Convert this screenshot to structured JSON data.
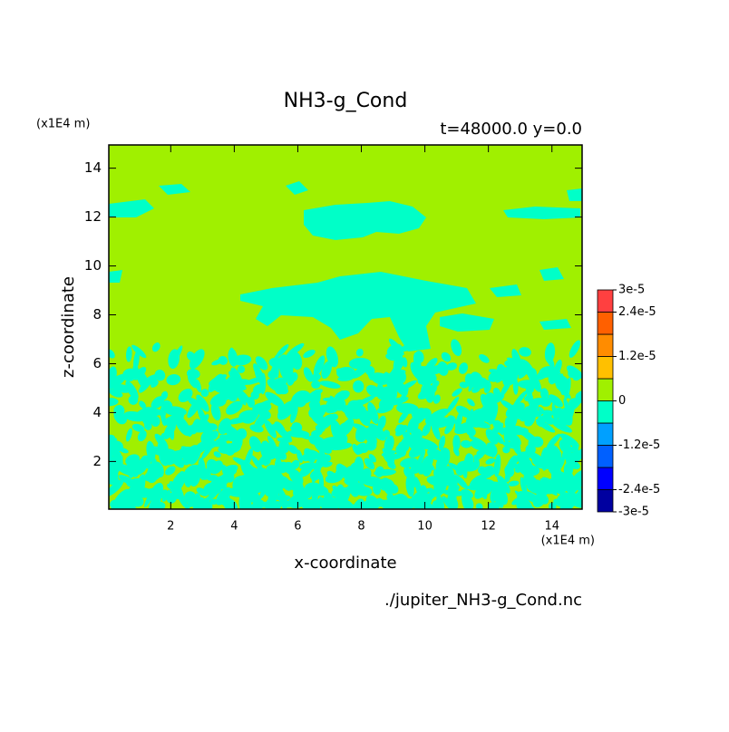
{
  "chart_data": {
    "type": "contour",
    "title": "NH3-g_Cond",
    "subtitle": "t=48000.0 y=0.0",
    "x_label": "x-coordinate",
    "y_label": "z-coordinate",
    "x_unit": "(x1E4 m)",
    "y_unit": "(x1E4 m)",
    "source": "./jupiter_NH3-g_Cond.nc",
    "xlim": [
      0.05,
      14.95
    ],
    "ylim": [
      0.05,
      14.95
    ],
    "xticks": [
      2,
      4,
      6,
      8,
      10,
      12,
      14
    ],
    "yticks": [
      2,
      4,
      6,
      8,
      10,
      12,
      14
    ],
    "levels": [
      -3e-05,
      -2.4e-05,
      -1.8e-05,
      -1.2e-05,
      -6e-06,
      0,
      6e-06,
      1.2e-05,
      1.8e-05,
      2.4e-05,
      3e-05
    ],
    "colors": [
      "#0000a0",
      "#0000ff",
      "#0060ff",
      "#00a0ff",
      "#00ffc8",
      "#a0f000",
      "#ffc000",
      "#ff8c00",
      "#ff6000",
      "#ff4040"
    ],
    "colorbar_ticks": [
      {
        "value": 3e-05,
        "label": "3e-5"
      },
      {
        "value": 2.4e-05,
        "label": "2.4e-5"
      },
      {
        "value": 1.2e-05,
        "label": "1.2e-5"
      },
      0,
      {
        "value": -1.2e-05,
        "label": "-1.2e-5"
      },
      {
        "value": -2.4e-05,
        "label": "-2.4e-5"
      },
      {
        "value": -3e-05,
        "label": "-3e-5"
      }
    ]
  }
}
